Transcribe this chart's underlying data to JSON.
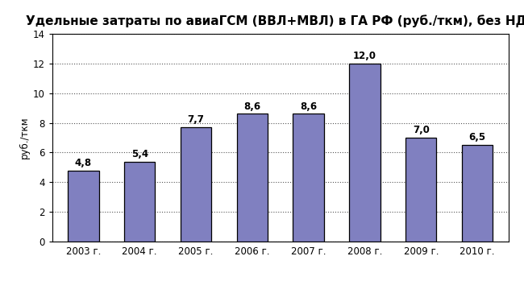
{
  "title": "Удельные затраты по авиаГСМ (ВВЛ+МВЛ) в ГА РФ (руб./ткм), без НДС",
  "categories": [
    "2003 г.",
    "2004 г.",
    "2005 г.",
    "2006 г.",
    "2007 г.",
    "2008 г.",
    "2009 г.",
    "2010 г."
  ],
  "values": [
    4.8,
    5.4,
    7.7,
    8.6,
    8.6,
    12.0,
    7.0,
    6.5
  ],
  "labels": [
    "4,8",
    "5,4",
    "7,7",
    "8,6",
    "8,6",
    "12,0",
    "7,0",
    "6,5"
  ],
  "bar_color": "#8080c0",
  "bar_edge_color": "#000000",
  "ylabel": "руб./ткм",
  "ylim": [
    0,
    14
  ],
  "yticks": [
    0,
    2,
    4,
    6,
    8,
    10,
    12,
    14
  ],
  "grid_color": "#555555",
  "title_fontsize": 11,
  "label_fontsize": 8.5,
  "tick_fontsize": 8.5,
  "ylabel_fontsize": 8.5,
  "bg_color": "#ffffff",
  "bar_width": 0.55
}
